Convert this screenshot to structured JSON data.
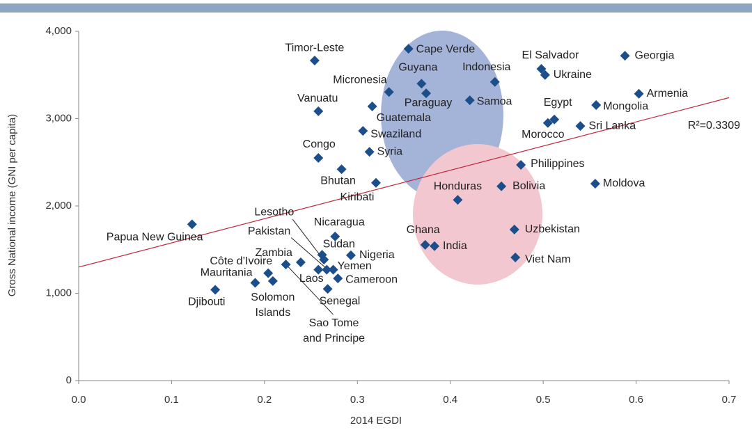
{
  "chart_data": {
    "type": "scatter",
    "xlabel": "2014 EGDI",
    "ylabel": "Gross National income (GNI per capita)",
    "color": "#1c4f8a",
    "labels": [
      "Papua New Guinea",
      "Djibouti",
      "Mauritania",
      "Solomon Islands",
      "Côte d’Ivoire",
      "Sao Tome and Principe",
      "Zambia",
      "Lesotho",
      "Pakistan",
      "Laos",
      "Yemen",
      "Cameroon",
      "Senegal",
      "Sudan",
      "Nicaragua",
      "Nigeria",
      "Timor-Leste",
      "Vanuatu",
      "Congo",
      "Bhutan",
      "Kiribati",
      "Syria",
      "Swaziland",
      "Guatemala",
      "Micronesia",
      "Cape Verde",
      "Guyana",
      "Paraguay",
      "Indonesia",
      "Samoa",
      "El Salvador",
      "Ukraine",
      "Georgia",
      "Armenia",
      "Mongolia",
      "Egypt",
      "Morocco",
      "Sri Lanka",
      "Philippines",
      "Bolivia",
      "Moldova",
      "Honduras",
      "Uzbekistan",
      "Ghana",
      "India",
      "Viet Nam"
    ],
    "x": [
      0.122,
      0.147,
      0.19,
      0.209,
      0.204,
      0.223,
      0.239,
      0.264,
      0.267,
      0.258,
      0.274,
      0.279,
      0.268,
      0.262,
      0.276,
      0.293,
      0.254,
      0.258,
      0.258,
      0.283,
      0.32,
      0.313,
      0.306,
      0.316,
      0.334,
      0.355,
      0.369,
      0.374,
      0.448,
      0.421,
      0.498,
      0.502,
      0.588,
      0.603,
      0.557,
      0.512,
      0.505,
      0.54,
      0.476,
      0.455,
      0.556,
      0.408,
      0.469,
      0.373,
      0.383,
      0.47
    ],
    "values": [
      1790,
      1040,
      1120,
      1140,
      1230,
      1330,
      1355,
      1385,
      1270,
      1270,
      1270,
      1170,
      1050,
      1440,
      1650,
      1435,
      3665,
      3085,
      2550,
      2420,
      2265,
      2620,
      2860,
      3140,
      3305,
      3800,
      3400,
      3290,
      3420,
      3210,
      3570,
      3500,
      3720,
      3285,
      3155,
      2990,
      2950,
      2915,
      2470,
      2225,
      2255,
      2070,
      1730,
      1555,
      1540,
      1410
    ],
    "trendline": {
      "x": [
        0,
        0.7
      ],
      "values": [
        1300,
        3240
      ]
    },
    "annotations": [
      "R²=0.3309"
    ],
    "xlim": [
      0,
      0.7
    ],
    "xticks": [
      {
        "value": 0,
        "label": "0.0"
      },
      0.1,
      0.2,
      0.3,
      0.4,
      0.5,
      0.6,
      0.7
    ],
    "ylim": [
      0,
      4000
    ],
    "yticks": [
      0,
      {
        "value": 1000,
        "label": "1,000"
      },
      {
        "value": 2000,
        "label": "2,000"
      },
      {
        "value": 3000,
        "label": "3,000"
      },
      {
        "value": 4000,
        "label": "4,000"
      }
    ],
    "grid": false
  }
}
